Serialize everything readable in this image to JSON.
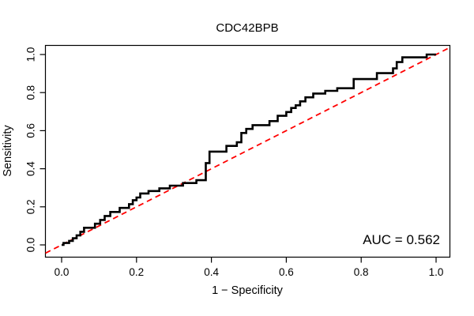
{
  "chart_data": {
    "type": "line",
    "subtype": "roc-step-curve",
    "title": "CDC42BPB",
    "xlabel": "1 − Specificity",
    "ylabel": "Sensitivity",
    "xlim": [
      0.0,
      1.0
    ],
    "ylim": [
      0.0,
      1.0
    ],
    "x_ticks": {
      "values": [
        0.0,
        0.2,
        0.4,
        0.6,
        0.8,
        1.0
      ],
      "labels": [
        "0.0",
        "0.2",
        "0.4",
        "0.6",
        "0.8",
        "1.0"
      ]
    },
    "y_ticks": {
      "values": [
        0.0,
        0.2,
        0.4,
        0.6,
        0.8,
        1.0
      ],
      "labels": [
        "0.0",
        "0.2",
        "0.4",
        "0.6",
        "0.8",
        "1.0"
      ]
    },
    "grid": false,
    "annotation": {
      "auc_label": "AUC = 0.562",
      "auc_value": 0.562
    },
    "series": [
      {
        "name": "ROC curve",
        "style": "step",
        "color": "#000000",
        "points": [
          [
            0.0,
            0.0
          ],
          [
            0.005,
            0.01
          ],
          [
            0.02,
            0.021
          ],
          [
            0.03,
            0.035
          ],
          [
            0.04,
            0.05
          ],
          [
            0.05,
            0.069
          ],
          [
            0.06,
            0.09
          ],
          [
            0.089,
            0.111
          ],
          [
            0.103,
            0.131
          ],
          [
            0.115,
            0.152
          ],
          [
            0.13,
            0.173
          ],
          [
            0.155,
            0.194
          ],
          [
            0.18,
            0.214
          ],
          [
            0.19,
            0.235
          ],
          [
            0.2,
            0.249
          ],
          [
            0.21,
            0.27
          ],
          [
            0.232,
            0.283
          ],
          [
            0.261,
            0.297
          ],
          [
            0.289,
            0.311
          ],
          [
            0.324,
            0.325
          ],
          [
            0.36,
            0.34
          ],
          [
            0.385,
            0.43
          ],
          [
            0.395,
            0.49
          ],
          [
            0.44,
            0.52
          ],
          [
            0.468,
            0.539
          ],
          [
            0.48,
            0.588
          ],
          [
            0.493,
            0.609
          ],
          [
            0.51,
            0.629
          ],
          [
            0.555,
            0.65
          ],
          [
            0.577,
            0.678
          ],
          [
            0.6,
            0.698
          ],
          [
            0.613,
            0.719
          ],
          [
            0.625,
            0.733
          ],
          [
            0.637,
            0.754
          ],
          [
            0.651,
            0.775
          ],
          [
            0.672,
            0.795
          ],
          [
            0.704,
            0.809
          ],
          [
            0.736,
            0.823
          ],
          [
            0.78,
            0.871
          ],
          [
            0.842,
            0.902
          ],
          [
            0.885,
            0.927
          ],
          [
            0.895,
            0.96
          ],
          [
            0.91,
            0.985
          ],
          [
            0.975,
            1.0
          ],
          [
            1.0,
            1.0
          ]
        ]
      },
      {
        "name": "Reference diagonal (chance line)",
        "style": "dashed-line",
        "color": "#FF0000",
        "points": [
          [
            -0.043,
            -0.043
          ],
          [
            1.037,
            1.037
          ]
        ]
      }
    ],
    "legend": null
  },
  "colors": {
    "curve": "#000000",
    "diagonal": "#FF0000",
    "box": "#000000",
    "background": "#ffffff"
  }
}
